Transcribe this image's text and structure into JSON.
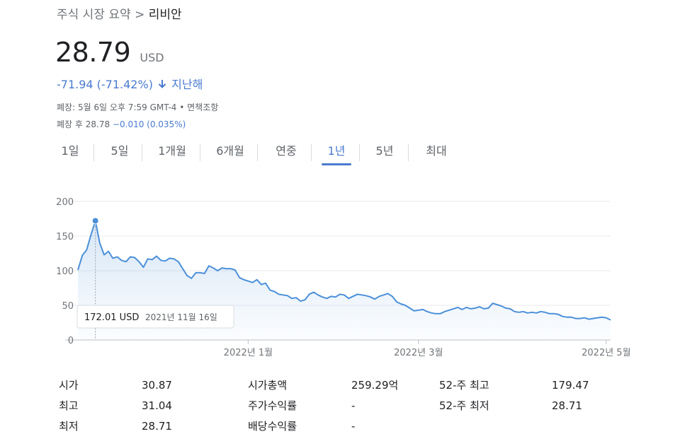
{
  "breadcrumb": {
    "parent": "주식 시장 요약",
    "separator": ">",
    "current": "리비안"
  },
  "quote": {
    "price": "28.79",
    "currency": "USD",
    "change": "-71.94 (-71.42%)",
    "change_period": "지난해",
    "close_info": "폐장: 5월 6일 오후 7:59 GMT-4 • 면책조항",
    "after_label": "폐장 후 28.78",
    "after_change": "−0.010 (0.035%)"
  },
  "tabs": [
    {
      "label": "1일",
      "active": false
    },
    {
      "label": "5일",
      "active": false
    },
    {
      "label": "1개월",
      "active": false
    },
    {
      "label": "6개월",
      "active": false
    },
    {
      "label": "연중",
      "active": false
    },
    {
      "label": "1년",
      "active": true
    },
    {
      "label": "5년",
      "active": false
    },
    {
      "label": "최대",
      "active": false
    }
  ],
  "chart_data": {
    "type": "area",
    "y_ticks": [
      "200",
      "150",
      "100",
      "50",
      "0"
    ],
    "ylim": [
      0,
      200
    ],
    "x_labels": [
      {
        "label": "2022년 1월",
        "index": 39
      },
      {
        "label": "2022년 3월",
        "index": 78
      },
      {
        "label": "2022년 5월",
        "index": 121
      }
    ],
    "values": [
      101,
      122,
      130,
      152,
      172,
      140,
      123,
      128,
      118,
      120,
      115,
      113,
      120,
      119,
      113,
      105,
      117,
      116,
      121,
      115,
      114,
      118,
      117,
      113,
      103,
      93,
      89,
      97,
      97,
      96,
      107,
      104,
      100,
      104,
      103,
      103,
      101,
      90,
      87,
      85,
      83,
      87,
      80,
      82,
      72,
      70,
      66,
      65,
      64,
      60,
      61,
      56,
      58,
      66,
      69,
      65,
      62,
      60,
      63,
      62,
      66,
      65,
      60,
      63,
      66,
      65,
      64,
      62,
      59,
      63,
      65,
      67,
      63,
      55,
      52,
      50,
      46,
      42,
      43,
      44,
      41,
      39,
      38,
      38,
      41,
      43,
      45,
      47,
      44,
      47,
      45,
      46,
      48,
      45,
      46,
      53,
      51,
      49,
      46,
      45,
      41,
      40,
      41,
      39,
      40,
      39,
      41,
      40,
      38,
      38,
      37,
      34,
      33,
      33,
      31,
      31,
      32,
      30,
      31,
      32,
      33,
      32,
      29
    ],
    "highlight": {
      "index": 4,
      "value": 172.01,
      "label": "172.01 USD",
      "date": "2021년 11월 16일"
    }
  },
  "stats": {
    "col1": [
      {
        "label": "시가",
        "value": "30.87"
      },
      {
        "label": "최고",
        "value": "31.04"
      },
      {
        "label": "최저",
        "value": "28.71"
      }
    ],
    "col2": [
      {
        "label": "시가총액",
        "value": "259.29억"
      },
      {
        "label": "주가수익률",
        "value": "-"
      },
      {
        "label": "배당수익률",
        "value": "-"
      }
    ],
    "col3": [
      {
        "label": "52-주 최고",
        "value": "179.47"
      },
      {
        "label": "52-주 최저",
        "value": "28.71"
      }
    ]
  },
  "colors": {
    "accent": "#4a7bd0",
    "line": "#4a90d9",
    "grid": "#e8eaed",
    "muted": "#70757a"
  }
}
